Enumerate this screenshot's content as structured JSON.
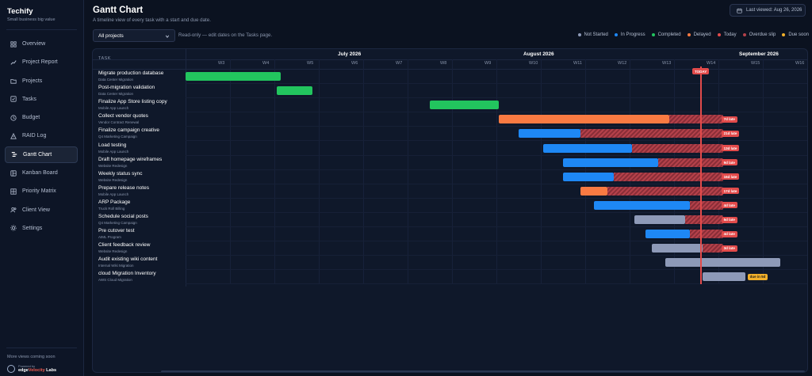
{
  "brand": {
    "name": "Techify",
    "tagline": "Small business big value"
  },
  "sidebar": {
    "items": [
      {
        "label": "Overview",
        "icon": "grid-icon"
      },
      {
        "label": "Project Report",
        "icon": "chart-icon"
      },
      {
        "label": "Projects",
        "icon": "folder-icon"
      },
      {
        "label": "Tasks",
        "icon": "checkbox-icon"
      },
      {
        "label": "Budget",
        "icon": "clock-icon"
      },
      {
        "label": "RAID Log",
        "icon": "warning-icon"
      },
      {
        "label": "Gantt Chart",
        "icon": "gantt-icon",
        "active": true
      },
      {
        "label": "Kanban Board",
        "icon": "kanban-icon"
      },
      {
        "label": "Priority Matrix",
        "icon": "matrix-icon"
      },
      {
        "label": "Client View",
        "icon": "users-icon"
      },
      {
        "label": "Settings",
        "icon": "gear-icon"
      }
    ],
    "footer_note": "More views coming soon",
    "powered_by": "Powered by",
    "powered_brand_a": "edge",
    "powered_brand_b": "Velocity",
    "powered_brand_c": " Labs"
  },
  "header": {
    "title": "Gantt Chart",
    "subtitle": "A timeline view of every task with a start and due date.",
    "last_viewed": "Last viewed: Aug 26, 2026"
  },
  "filters": {
    "project_select": "All projects",
    "readonly_note": "Read-only — edit dates on the Tasks page."
  },
  "legend": [
    {
      "label": "Not Started",
      "color": "#8e9ab8"
    },
    {
      "label": "In Progress",
      "color": "#1e88f5"
    },
    {
      "label": "Completed",
      "color": "#22c55e"
    },
    {
      "label": "Delayed",
      "color": "#f97a42"
    },
    {
      "label": "Today",
      "color": "#e24b4b"
    },
    {
      "label": "Overdue slip",
      "color": "#b4414a"
    },
    {
      "label": "Due soon",
      "color": "#f2b02a"
    }
  ],
  "gantt": {
    "task_header": "TASK",
    "today_label": "TODAY",
    "months": [
      "July 2026",
      "August 2026",
      "September 2026"
    ],
    "weeks": [
      "W3",
      "W4",
      "W5",
      "W6",
      "W7",
      "W8",
      "W9",
      "W10",
      "W11",
      "W12",
      "W13",
      "W14",
      "W15",
      "W16"
    ],
    "tasks": [
      {
        "name": "Migrate production database",
        "project": "Data Center Migration",
        "status": "completed",
        "start": 0.0,
        "end": 2.15
      },
      {
        "name": "Post-migration validation",
        "project": "Data Center Migration",
        "status": "completed",
        "start": 2.05,
        "end": 2.85
      },
      {
        "name": "Finalize App Store listing copy",
        "project": "Mobile App Launch",
        "status": "completed",
        "start": 5.5,
        "end": 7.05
      },
      {
        "name": "Collect vendor quotes",
        "project": "Vendor Contract Renewal",
        "status": "delayed",
        "start": 7.05,
        "end": 10.9,
        "slip_end": 12.1,
        "badge": "7d late"
      },
      {
        "name": "Finalize campaign creative",
        "project": "Q4 Marketing Campaign",
        "status": "in_progress",
        "start": 7.5,
        "end": 8.9,
        "slip_end": 12.1,
        "badge": "21d late"
      },
      {
        "name": "Load testing",
        "project": "Mobile App Launch",
        "status": "in_progress",
        "start": 8.05,
        "end": 10.05,
        "slip_end": 12.1,
        "badge": "13d late"
      },
      {
        "name": "Draft homepage wireframes",
        "project": "Website Redesign",
        "status": "in_progress",
        "start": 8.5,
        "end": 10.65,
        "slip_end": 12.1,
        "badge": "9d late"
      },
      {
        "name": "Weekly status sync",
        "project": "Website Redesign",
        "status": "in_progress",
        "start": 8.5,
        "end": 9.65,
        "slip_end": 12.1,
        "badge": "16d late"
      },
      {
        "name": "Prepare release notes",
        "project": "Mobile App Launch",
        "status": "delayed",
        "start": 8.9,
        "end": 9.5,
        "slip_end": 12.1,
        "badge": "17d late"
      },
      {
        "name": "ARP Package",
        "project": "Truck Roll Billing",
        "status": "in_progress",
        "start": 9.2,
        "end": 11.35,
        "slip_end": 12.1,
        "badge": "4d late"
      },
      {
        "name": "Schedule social posts",
        "project": "Q4 Marketing Campaign",
        "status": "not_started",
        "start": 10.1,
        "end": 11.25,
        "slip_end": 12.1,
        "badge": "5d late"
      },
      {
        "name": "Pre cutover test",
        "project": "AIML Program",
        "status": "in_progress",
        "start": 10.35,
        "end": 11.35,
        "slip_end": 12.1,
        "badge": "4d late"
      },
      {
        "name": "Client feedback review",
        "project": "Website Redesign",
        "status": "not_started",
        "start": 10.5,
        "end": 11.65,
        "slip_end": 12.1,
        "badge": "3d late"
      },
      {
        "name": "Audit existing wiki content",
        "project": "Internal Wiki Migration",
        "status": "not_started",
        "start": 10.8,
        "end": 13.4
      },
      {
        "name": "cloud Migration Inventory",
        "project": "AWS Cloud Migration",
        "status": "not_started",
        "start": 11.65,
        "end": 12.6,
        "badge": "due in 5d",
        "badge_type": "soon"
      }
    ]
  }
}
